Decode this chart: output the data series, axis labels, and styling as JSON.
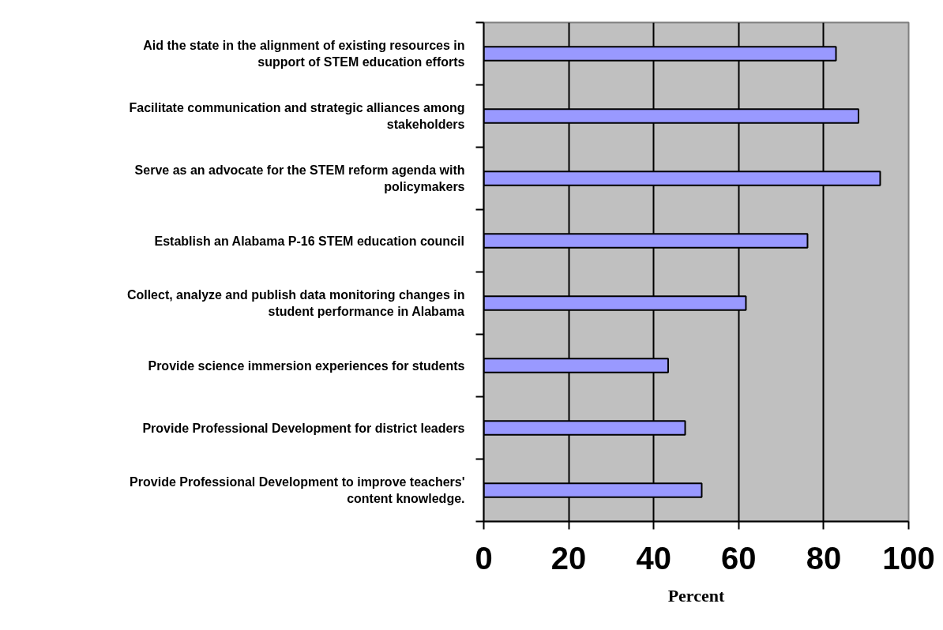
{
  "chart_data": {
    "type": "bar",
    "orientation": "horizontal",
    "xlabel": "Percent",
    "categories": [
      "Aid the state in the alignment of existing resources in support of STEM education efforts",
      "Facilitate communication and strategic alliances among stakeholders",
      "Serve as an advocate for the STEM reform agenda with policymakers",
      "Establish an Alabama P-16 STEM education council",
      "Collect, analyze and publish data monitoring changes in student performance in Alabama",
      "Provide science immersion experiences for students",
      "Provide Professional Development for district leaders",
      "Provide Professional Development to improve teachers' content knowledge."
    ],
    "values": [
      82.9,
      88.2,
      93.3,
      76.2,
      61.7,
      43.4,
      47.4,
      51.3
    ],
    "color": "#9999ff",
    "xlim": [
      0,
      100
    ],
    "xticks": [
      0,
      20,
      40,
      60,
      80,
      100
    ],
    "grid": "x"
  }
}
